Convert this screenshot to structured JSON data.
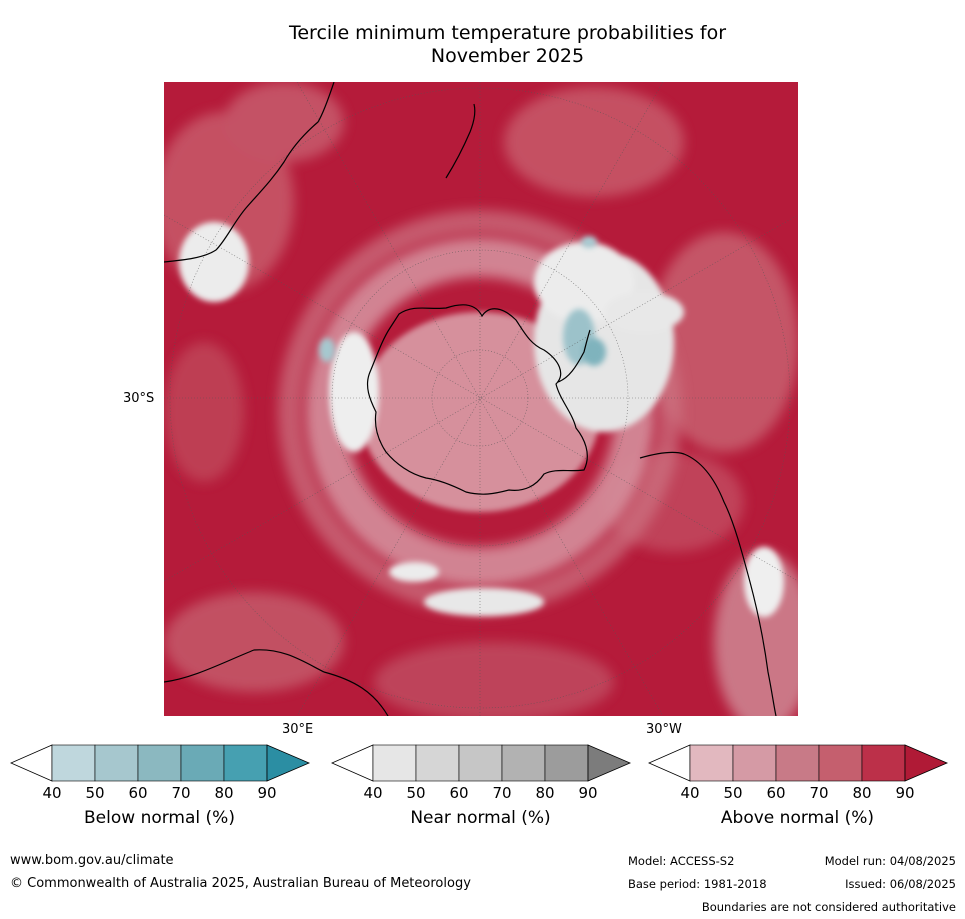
{
  "title": {
    "line1": "Tercile minimum temperature probabilities for",
    "line2": "November 2025"
  },
  "map": {
    "projection": "south-polar-stereographic",
    "graticule_labels": {
      "lat_left": "30°S",
      "lon_bottom_left": "30°E",
      "lon_bottom_right": "30°W"
    },
    "colors": {
      "ocean_dominant": "#b51b3a",
      "land_outline": "#000000",
      "graticule": "#555555"
    }
  },
  "colorbars": [
    {
      "title": "Below normal (%)",
      "ticks": [
        "40",
        "50",
        "60",
        "70",
        "80",
        "90"
      ],
      "colors": [
        "#ffffff",
        "#bfd7dd",
        "#a6c7ce",
        "#8bb8c0",
        "#6aaab6",
        "#46a0b1",
        "#2b8ea3"
      ]
    },
    {
      "title": "Near normal (%)",
      "ticks": [
        "40",
        "50",
        "60",
        "70",
        "80",
        "90"
      ],
      "colors": [
        "#ffffff",
        "#e6e6e6",
        "#d6d6d6",
        "#c6c6c6",
        "#b2b2b2",
        "#9c9c9c",
        "#7c7c7c"
      ]
    },
    {
      "title": "Above normal (%)",
      "ticks": [
        "40",
        "50",
        "60",
        "70",
        "80",
        "90"
      ],
      "colors": [
        "#ffffff",
        "#e2b8bf",
        "#d59aa5",
        "#c87a87",
        "#c55f6e",
        "#bc3049",
        "#b01a36"
      ]
    }
  ],
  "footer": {
    "website": "www.bom.gov.au/climate",
    "copyright": "© Commonwealth of Australia 2025, Australian Bureau of Meteorology",
    "model": "Model: ACCESS-S2",
    "model_run": "Model run: 04/08/2025",
    "base_period": "Base period: 1981-2018",
    "issued": "Issued: 06/08/2025",
    "disclaimer": "Boundaries are not considered authoritative"
  }
}
